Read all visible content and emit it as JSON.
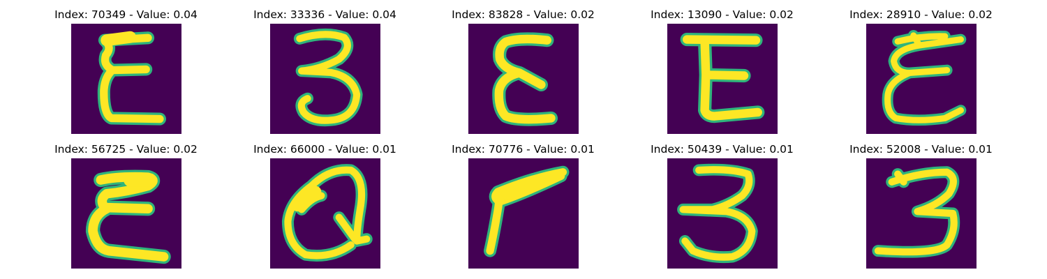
{
  "colors": {
    "background": "#440154",
    "stroke_edge": "#2fb47c",
    "stroke_core": "#fde725"
  },
  "panels": [
    {
      "title": "Index: 70349 - Value: 0.04",
      "glyph": "epsilon-glyph"
    },
    {
      "title": "Index: 33336 - Value: 0.04",
      "glyph": "three-glyph"
    },
    {
      "title": "Index: 83828 - Value: 0.02",
      "glyph": "epsilon-glyph"
    },
    {
      "title": "Index: 13090 - Value: 0.02",
      "glyph": "epsilon-glyph"
    },
    {
      "title": "Index: 28910 - Value: 0.02",
      "glyph": "epsilon-glyph"
    },
    {
      "title": "Index: 56725 - Value: 0.02",
      "glyph": "epsilon-glyph"
    },
    {
      "title": "Index: 66000 - Value: 0.01",
      "glyph": "q-glyph"
    },
    {
      "title": "Index: 70776 - Value: 0.01",
      "glyph": "angle-glyph"
    },
    {
      "title": "Index: 50439 - Value: 0.01",
      "glyph": "three-glyph"
    },
    {
      "title": "Index: 52008 - Value: 0.01",
      "glyph": "three-glyph"
    }
  ]
}
